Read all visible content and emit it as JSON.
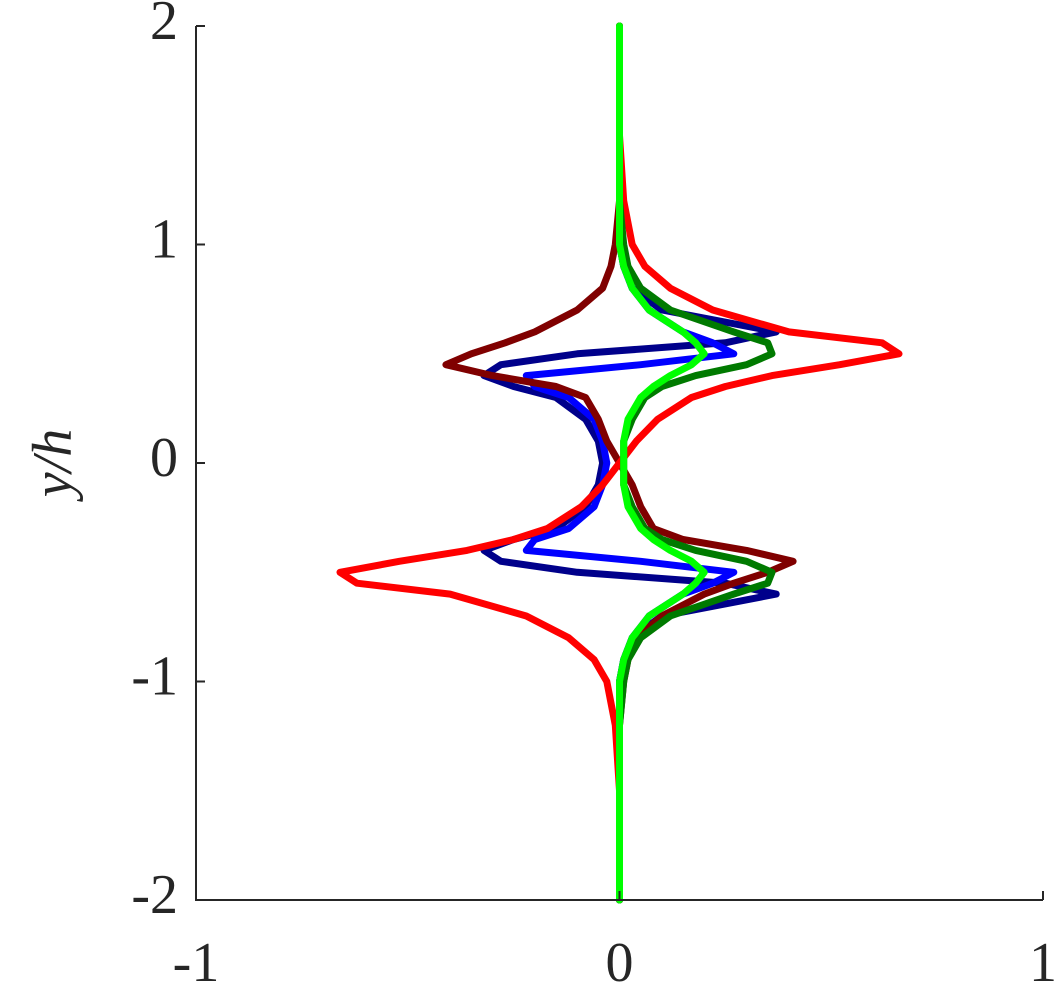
{
  "chart_data": {
    "type": "line",
    "orientation": "horizontal",
    "ylabel": "y/h",
    "y": [
      -2,
      -1.5,
      -1.2,
      -1,
      -0.9,
      -0.8,
      -0.7,
      -0.6,
      -0.55,
      -0.5,
      -0.45,
      -0.4,
      -0.35,
      -0.3,
      -0.2,
      -0.1,
      0,
      0.1,
      0.2,
      0.3,
      0.35,
      0.4,
      0.45,
      0.5,
      0.55,
      0.6,
      0.7,
      0.8,
      0.9,
      1,
      1.2,
      1.5,
      2
    ],
    "series": [
      {
        "color": "#00008b",
        "values": [
          0,
          0,
          0,
          0,
          0.01,
          0.03,
          0.1,
          0.37,
          0.25,
          -0.1,
          -0.28,
          -0.32,
          -0.25,
          -0.15,
          -0.08,
          -0.05,
          -0.04,
          -0.05,
          -0.08,
          -0.15,
          -0.25,
          -0.32,
          -0.28,
          -0.1,
          0.25,
          0.37,
          0.1,
          0.03,
          0.01,
          0,
          0,
          0,
          0
        ]
      },
      {
        "color": "#0000ff",
        "values": [
          0,
          0,
          0,
          0,
          0.01,
          0.03,
          0.07,
          0.15,
          0.22,
          0.27,
          0.05,
          -0.22,
          -0.2,
          -0.12,
          -0.06,
          -0.04,
          -0.03,
          -0.04,
          -0.06,
          -0.12,
          -0.2,
          -0.22,
          0.05,
          0.27,
          0.22,
          0.15,
          0.07,
          0.03,
          0.01,
          0,
          0,
          0,
          0
        ]
      },
      {
        "color": "#800000",
        "values": [
          0,
          0,
          0,
          0.01,
          0.02,
          0.04,
          0.1,
          0.2,
          0.27,
          0.35,
          0.41,
          0.3,
          0.15,
          0.08,
          0.05,
          0.03,
          0,
          -0.03,
          -0.05,
          -0.08,
          -0.15,
          -0.3,
          -0.41,
          -0.35,
          -0.27,
          -0.2,
          -0.1,
          -0.04,
          -0.02,
          -0.01,
          0,
          0,
          0
        ]
      },
      {
        "color": "#ff0000",
        "values": [
          0,
          0,
          -0.01,
          -0.03,
          -0.06,
          -0.12,
          -0.22,
          -0.4,
          -0.62,
          -0.66,
          -0.52,
          -0.36,
          -0.25,
          -0.17,
          -0.09,
          -0.04,
          0,
          0.04,
          0.09,
          0.17,
          0.25,
          0.36,
          0.52,
          0.66,
          0.62,
          0.4,
          0.22,
          0.12,
          0.06,
          0.03,
          0.01,
          0,
          0
        ]
      },
      {
        "color": "#007a00",
        "values": [
          0,
          0,
          0,
          0.01,
          0.02,
          0.05,
          0.12,
          0.27,
          0.35,
          0.36,
          0.3,
          0.18,
          0.1,
          0.06,
          0.03,
          0.01,
          0.01,
          0.01,
          0.03,
          0.06,
          0.1,
          0.18,
          0.3,
          0.36,
          0.35,
          0.27,
          0.12,
          0.05,
          0.02,
          0.01,
          0,
          0,
          0
        ]
      },
      {
        "color": "#00ff00",
        "values": [
          0,
          0,
          0,
          0,
          0.01,
          0.03,
          0.07,
          0.15,
          0.18,
          0.2,
          0.17,
          0.12,
          0.08,
          0.05,
          0.02,
          0.01,
          0.01,
          0.01,
          0.02,
          0.05,
          0.08,
          0.12,
          0.17,
          0.2,
          0.18,
          0.15,
          0.07,
          0.03,
          0.01,
          0,
          0,
          0,
          0
        ]
      }
    ],
    "xlim": [
      -1,
      1
    ],
    "xticks": [
      -1,
      0,
      1
    ],
    "ylim": [
      -2,
      2
    ],
    "yticks": [
      -2,
      -1,
      0,
      1,
      2
    ]
  }
}
